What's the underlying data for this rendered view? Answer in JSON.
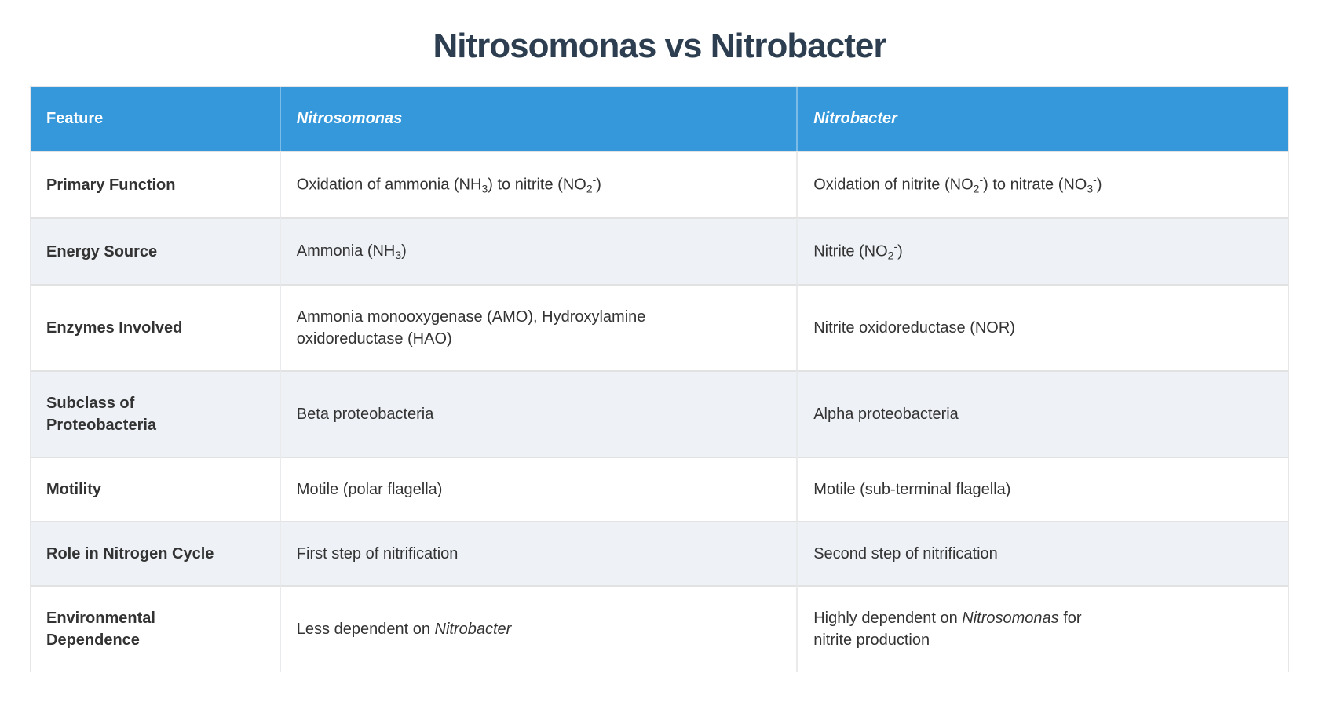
{
  "title": "Nitrosomonas vs Nitrobacter",
  "colors": {
    "header_bg": "#3498db",
    "header_text": "#ffffff",
    "title_text": "#2c3e50",
    "zebra_row": "#eef2f7",
    "row_border": "#e2e2e2",
    "body_text": "#333333"
  },
  "table": {
    "headers": [
      {
        "label": "Feature",
        "italic": false
      },
      {
        "label": "Nitrosomonas",
        "italic": true
      },
      {
        "label": "Nitrobacter",
        "italic": true
      }
    ],
    "rows": [
      {
        "feature": "Primary Function",
        "cells": [
          [
            {
              "t": "Oxidation of ammonia (NH"
            },
            {
              "t": "3",
              "s": "sub"
            },
            {
              "t": ") to nitrite (NO"
            },
            {
              "t": "2",
              "s": "sub"
            },
            {
              "t": "-",
              "s": "sup"
            },
            {
              "t": ")"
            }
          ],
          [
            {
              "t": "Oxidation of nitrite (NO"
            },
            {
              "t": "2",
              "s": "sub"
            },
            {
              "t": "-",
              "s": "sup"
            },
            {
              "t": ") to nitrate (NO"
            },
            {
              "t": "3",
              "s": "sub"
            },
            {
              "t": "-",
              "s": "sup"
            },
            {
              "t": ")"
            }
          ]
        ]
      },
      {
        "feature": "Energy Source",
        "cells": [
          [
            {
              "t": "Ammonia (NH"
            },
            {
              "t": "3",
              "s": "sub"
            },
            {
              "t": ")"
            }
          ],
          [
            {
              "t": "Nitrite (NO"
            },
            {
              "t": "2",
              "s": "sub"
            },
            {
              "t": "-",
              "s": "sup"
            },
            {
              "t": ")"
            }
          ]
        ]
      },
      {
        "feature": "Enzymes Involved",
        "cells": [
          [
            {
              "t": "Ammonia monooxygenase (AMO), Hydroxylamine oxidoreductase (HAO)"
            }
          ],
          [
            {
              "t": "Nitrite oxidoreductase (NOR)"
            }
          ]
        ]
      },
      {
        "feature": "Subclass of Proteobacteria",
        "cells": [
          [
            {
              "t": "Beta proteobacteria"
            }
          ],
          [
            {
              "t": "Alpha proteobacteria"
            }
          ]
        ]
      },
      {
        "feature": "Motility",
        "cells": [
          [
            {
              "t": "Motile (polar flagella)"
            }
          ],
          [
            {
              "t": "Motile (sub-terminal flagella)"
            }
          ]
        ]
      },
      {
        "feature": "Role in Nitrogen Cycle",
        "cells": [
          [
            {
              "t": "First step of nitrification"
            }
          ],
          [
            {
              "t": "Second step of nitrification"
            }
          ]
        ]
      },
      {
        "feature": "Environmental Dependence",
        "cells": [
          [
            {
              "t": "Less dependent on "
            },
            {
              "t": "Nitrobacter",
              "s": "i"
            }
          ],
          [
            {
              "t": "Highly dependent on "
            },
            {
              "t": "Nitrosomonas",
              "s": "i"
            },
            {
              "t": " for"
            },
            {
              "s": "br"
            },
            {
              "t": "nitrite production"
            }
          ]
        ]
      }
    ]
  }
}
